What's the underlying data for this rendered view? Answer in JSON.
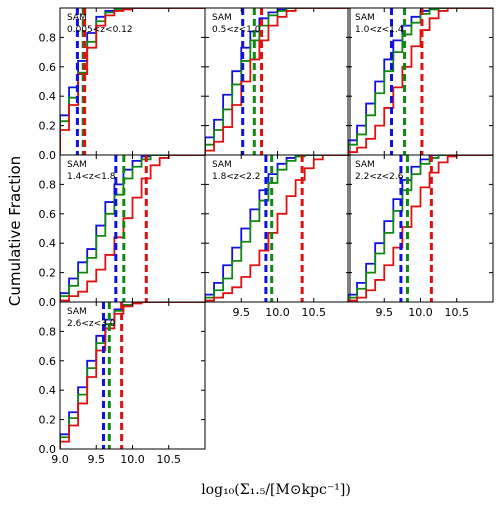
{
  "figure": {
    "ylabel": "Cumulative Fraction",
    "xlabel": "log₁₀(Σ₁.₅/[M⊙kpc⁻¹])"
  },
  "colors": {
    "blue": "#1010e0",
    "green": "#118811",
    "red": "#e01010"
  },
  "x_ticks": [
    "9.0",
    "9.5",
    "10.0",
    "10.5"
  ],
  "y_ticks": [
    "0.0",
    "0.2",
    "0.4",
    "0.6",
    "0.8"
  ],
  "chart_data": [
    {
      "type": "step",
      "label_line1": "SAM",
      "label_line2": "0.005<z<0.12",
      "xlim": [
        9.0,
        11.0
      ],
      "ylim": [
        0.0,
        1.0
      ],
      "edges": [
        9.0,
        9.125,
        9.25,
        9.375,
        9.5,
        9.625,
        9.75,
        9.875,
        10.0,
        10.125,
        10.25,
        10.375,
        10.5,
        10.625,
        10.75,
        10.875,
        11.0
      ],
      "series": [
        {
          "color": "blue",
          "values": [
            0.27,
            0.46,
            0.64,
            0.83,
            0.94,
            0.98,
            0.99,
            1.0,
            1.0,
            1.0,
            1.0,
            1.0,
            1.0,
            1.0,
            1.0,
            1.0
          ],
          "median": 9.24
        },
        {
          "color": "green",
          "values": [
            0.23,
            0.39,
            0.56,
            0.77,
            0.91,
            0.97,
            0.99,
            1.0,
            1.0,
            1.0,
            1.0,
            1.0,
            1.0,
            1.0,
            1.0,
            1.0
          ],
          "median": 9.32
        },
        {
          "color": "red",
          "values": [
            0.17,
            0.34,
            0.55,
            0.73,
            0.88,
            0.95,
            0.98,
            0.99,
            1.0,
            1.0,
            1.0,
            1.0,
            1.0,
            1.0,
            1.0,
            1.0
          ],
          "median": 9.34
        }
      ]
    },
    {
      "type": "step",
      "label_line1": "SAM",
      "label_line2": "0.5<z<1.0",
      "xlim": [
        9.0,
        11.0
      ],
      "ylim": [
        0.0,
        1.0
      ],
      "edges": [
        9.0,
        9.125,
        9.25,
        9.375,
        9.5,
        9.625,
        9.75,
        9.875,
        10.0,
        10.125,
        10.25,
        10.375,
        10.5,
        10.625,
        10.75,
        10.875,
        11.0
      ],
      "series": [
        {
          "color": "blue",
          "values": [
            0.12,
            0.24,
            0.41,
            0.57,
            0.73,
            0.84,
            0.93,
            0.97,
            0.99,
            1.0,
            1.0,
            1.0,
            1.0,
            1.0,
            1.0,
            1.0
          ],
          "median": 9.52
        },
        {
          "color": "green",
          "values": [
            0.07,
            0.17,
            0.31,
            0.48,
            0.64,
            0.78,
            0.88,
            0.95,
            0.98,
            1.0,
            1.0,
            1.0,
            1.0,
            1.0,
            1.0,
            1.0
          ],
          "median": 9.68
        },
        {
          "color": "red",
          "values": [
            0.03,
            0.09,
            0.19,
            0.34,
            0.5,
            0.65,
            0.78,
            0.88,
            0.94,
            0.98,
            1.0,
            1.0,
            1.0,
            1.0,
            1.0,
            1.0
          ],
          "median": 9.78
        }
      ]
    },
    {
      "type": "step",
      "label_line1": "SAM",
      "label_line2": "1.0<z<1.4",
      "xlim": [
        9.0,
        11.0
      ],
      "ylim": [
        0.0,
        1.0
      ],
      "edges": [
        9.0,
        9.125,
        9.25,
        9.375,
        9.5,
        9.625,
        9.75,
        9.875,
        10.0,
        10.125,
        10.25,
        10.375,
        10.5,
        10.625,
        10.75,
        10.875,
        11.0
      ],
      "series": [
        {
          "color": "blue",
          "values": [
            0.1,
            0.2,
            0.35,
            0.5,
            0.65,
            0.78,
            0.88,
            0.94,
            0.98,
            1.0,
            1.0,
            1.0,
            1.0,
            1.0,
            1.0,
            1.0
          ],
          "median": 9.6
        },
        {
          "color": "green",
          "values": [
            0.07,
            0.14,
            0.27,
            0.42,
            0.57,
            0.7,
            0.82,
            0.9,
            0.96,
            0.99,
            1.0,
            1.0,
            1.0,
            1.0,
            1.0,
            1.0
          ],
          "median": 9.78
        },
        {
          "color": "red",
          "values": [
            0.02,
            0.05,
            0.11,
            0.2,
            0.32,
            0.46,
            0.6,
            0.74,
            0.85,
            0.93,
            0.98,
            1.0,
            1.0,
            1.0,
            1.0,
            1.0
          ],
          "median": 10.02
        }
      ]
    },
    {
      "type": "step",
      "label_line1": "SAM",
      "label_line2": "1.4<z<1.8",
      "xlim": [
        9.0,
        11.0
      ],
      "ylim": [
        0.0,
        1.0
      ],
      "edges": [
        9.0,
        9.125,
        9.25,
        9.375,
        9.5,
        9.625,
        9.75,
        9.875,
        10.0,
        10.125,
        10.25,
        10.375,
        10.5,
        10.625,
        10.75,
        10.875,
        11.0
      ],
      "series": [
        {
          "color": "blue",
          "values": [
            0.06,
            0.16,
            0.27,
            0.36,
            0.52,
            0.68,
            0.8,
            0.9,
            0.96,
            0.99,
            1.0,
            1.0,
            1.0,
            1.0,
            1.0,
            1.0
          ],
          "median": 9.77
        },
        {
          "color": "green",
          "values": [
            0.04,
            0.11,
            0.2,
            0.3,
            0.45,
            0.6,
            0.73,
            0.84,
            0.92,
            0.97,
            1.0,
            1.0,
            1.0,
            1.0,
            1.0,
            1.0
          ],
          "median": 9.88
        },
        {
          "color": "red",
          "values": [
            0.01,
            0.04,
            0.07,
            0.14,
            0.22,
            0.32,
            0.44,
            0.57,
            0.71,
            0.84,
            0.93,
            0.98,
            1.0,
            1.0,
            1.0,
            1.0
          ],
          "median": 10.19
        }
      ]
    },
    {
      "type": "step",
      "label_line1": "SAM",
      "label_line2": "1.8<z<2.2",
      "xlim": [
        9.0,
        11.0
      ],
      "ylim": [
        0.0,
        1.0
      ],
      "edges": [
        9.0,
        9.125,
        9.25,
        9.375,
        9.5,
        9.625,
        9.75,
        9.875,
        10.0,
        10.125,
        10.25,
        10.375,
        10.5,
        10.625,
        10.75,
        10.875,
        11.0
      ],
      "series": [
        {
          "color": "blue",
          "values": [
            0.05,
            0.13,
            0.25,
            0.37,
            0.5,
            0.63,
            0.76,
            0.87,
            0.94,
            0.98,
            1.0,
            1.0,
            1.0,
            1.0,
            1.0,
            1.0
          ],
          "median": 9.84
        },
        {
          "color": "green",
          "values": [
            0.03,
            0.08,
            0.16,
            0.28,
            0.41,
            0.55,
            0.69,
            0.81,
            0.9,
            0.96,
            0.99,
            1.0,
            1.0,
            1.0,
            1.0,
            1.0
          ],
          "median": 9.92
        },
        {
          "color": "red",
          "values": [
            0.01,
            0.03,
            0.06,
            0.1,
            0.17,
            0.25,
            0.35,
            0.47,
            0.6,
            0.72,
            0.83,
            0.91,
            0.97,
            1.0,
            1.0,
            1.0
          ],
          "median": 10.34
        }
      ]
    },
    {
      "type": "step",
      "label_line1": "SAM",
      "label_line2": "2.2<z<2.6",
      "xlim": [
        9.0,
        11.0
      ],
      "ylim": [
        0.0,
        1.0
      ],
      "edges": [
        9.0,
        9.125,
        9.25,
        9.375,
        9.5,
        9.625,
        9.75,
        9.875,
        10.0,
        10.125,
        10.25,
        10.375,
        10.5,
        10.625,
        10.75,
        10.875,
        11.0
      ],
      "series": [
        {
          "color": "blue",
          "values": [
            0.05,
            0.13,
            0.26,
            0.4,
            0.55,
            0.7,
            0.83,
            0.92,
            0.97,
            1.0,
            1.0,
            1.0,
            1.0,
            1.0,
            1.0,
            1.0
          ],
          "median": 9.73
        },
        {
          "color": "green",
          "values": [
            0.03,
            0.09,
            0.2,
            0.33,
            0.47,
            0.62,
            0.76,
            0.87,
            0.94,
            0.98,
            1.0,
            1.0,
            1.0,
            1.0,
            1.0,
            1.0
          ],
          "median": 9.82
        },
        {
          "color": "red",
          "values": [
            0.01,
            0.03,
            0.08,
            0.15,
            0.25,
            0.37,
            0.51,
            0.65,
            0.78,
            0.88,
            0.95,
            0.99,
            1.0,
            1.0,
            1.0,
            1.0
          ],
          "median": 10.15
        }
      ]
    },
    {
      "type": "step",
      "label_line1": "SAM",
      "label_line2": "2.6<z<3.0",
      "xlim": [
        9.0,
        11.0
      ],
      "ylim": [
        0.0,
        1.0
      ],
      "edges": [
        9.0,
        9.125,
        9.25,
        9.375,
        9.5,
        9.625,
        9.75,
        9.875,
        10.0,
        10.125,
        10.25,
        10.375,
        10.5,
        10.625,
        10.75,
        10.875,
        11.0
      ],
      "series": [
        {
          "color": "blue",
          "values": [
            0.1,
            0.25,
            0.42,
            0.6,
            0.77,
            0.88,
            0.95,
            0.98,
            1.0,
            1.0,
            1.0,
            1.0,
            1.0,
            1.0,
            1.0,
            1.0
          ],
          "median": 9.6
        },
        {
          "color": "green",
          "values": [
            0.08,
            0.21,
            0.37,
            0.55,
            0.72,
            0.85,
            0.94,
            0.98,
            1.0,
            1.0,
            1.0,
            1.0,
            1.0,
            1.0,
            1.0,
            1.0
          ],
          "median": 9.68
        },
        {
          "color": "red",
          "values": [
            0.05,
            0.16,
            0.31,
            0.49,
            0.67,
            0.82,
            0.92,
            0.97,
            0.99,
            1.0,
            1.0,
            1.0,
            1.0,
            1.0,
            1.0,
            1.0
          ],
          "median": 9.85
        }
      ]
    }
  ]
}
